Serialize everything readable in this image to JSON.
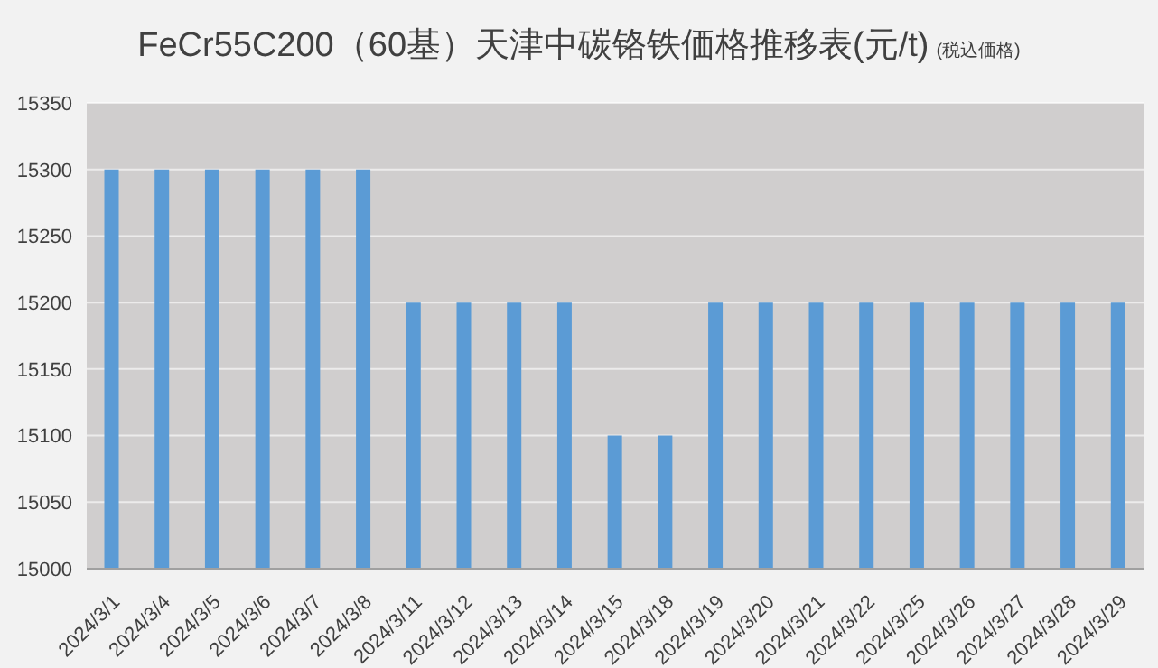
{
  "chart_data": {
    "type": "bar",
    "title": "FeCr55C200（60基）天津中碳铬铁価格推移表(元/t)",
    "subtitle": "(税込価格)",
    "categories": [
      "2024/3/1",
      "2024/3/4",
      "2024/3/5",
      "2024/3/6",
      "2024/3/7",
      "2024/3/8",
      "2024/3/11",
      "2024/3/12",
      "2024/3/13",
      "2024/3/14",
      "2024/3/15",
      "2024/3/18",
      "2024/3/19",
      "2024/3/20",
      "2024/3/21",
      "2024/3/22",
      "2024/3/25",
      "2024/3/26",
      "2024/3/27",
      "2024/3/28",
      "2024/3/29"
    ],
    "values": [
      15300,
      15300,
      15300,
      15300,
      15300,
      15300,
      15200,
      15200,
      15200,
      15200,
      15100,
      15100,
      15200,
      15200,
      15200,
      15200,
      15200,
      15200,
      15200,
      15200,
      15200
    ],
    "color": "#5b9bd5",
    "ylim": [
      15000,
      15350
    ],
    "yticks": [
      15000,
      15050,
      15100,
      15150,
      15200,
      15250,
      15300,
      15350
    ],
    "grid": "y",
    "legend": false
  }
}
